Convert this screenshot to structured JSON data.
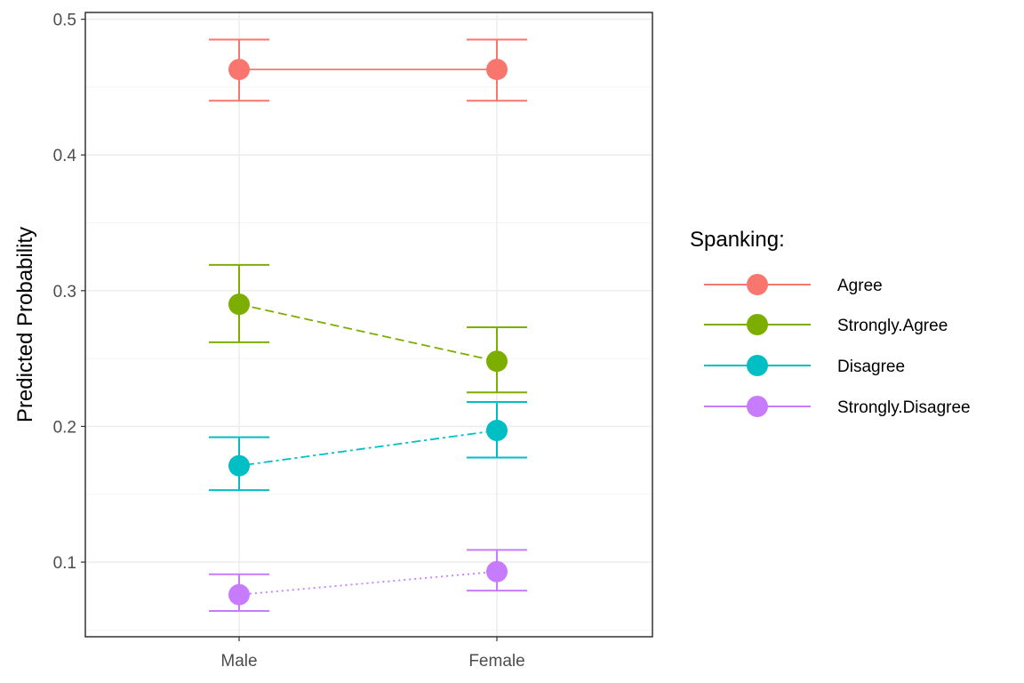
{
  "chart_data": {
    "type": "line",
    "title": "",
    "xlabel": "",
    "ylabel": "Predicted Probability",
    "categories": [
      "Male",
      "Female"
    ],
    "ylim": [
      0.045,
      0.505
    ],
    "yticks": [
      0.1,
      0.2,
      0.3,
      0.4,
      0.5
    ],
    "yticks_labels": [
      "0.1",
      "0.2",
      "0.3",
      "0.4",
      "0.5"
    ],
    "grid": true,
    "legend": {
      "title": "Spanking:",
      "position": "right"
    },
    "series": [
      {
        "name": "Agree",
        "color": "#F8766D",
        "linetype": "solid",
        "values": [
          0.463,
          0.463
        ],
        "lower": [
          0.44,
          0.44
        ],
        "upper": [
          0.485,
          0.485
        ]
      },
      {
        "name": "Strongly.Agree",
        "color": "#7CAE00",
        "linetype": "dashed",
        "values": [
          0.29,
          0.248
        ],
        "lower": [
          0.262,
          0.225
        ],
        "upper": [
          0.319,
          0.273
        ]
      },
      {
        "name": "Disagree",
        "color": "#00BFC4",
        "linetype": "dotdash",
        "values": [
          0.171,
          0.197
        ],
        "lower": [
          0.153,
          0.177
        ],
        "upper": [
          0.192,
          0.218
        ]
      },
      {
        "name": "Strongly.Disagree",
        "color": "#C77CFF",
        "linetype": "dotted",
        "values": [
          0.076,
          0.093
        ],
        "lower": [
          0.064,
          0.079
        ],
        "upper": [
          0.091,
          0.109
        ]
      }
    ]
  }
}
